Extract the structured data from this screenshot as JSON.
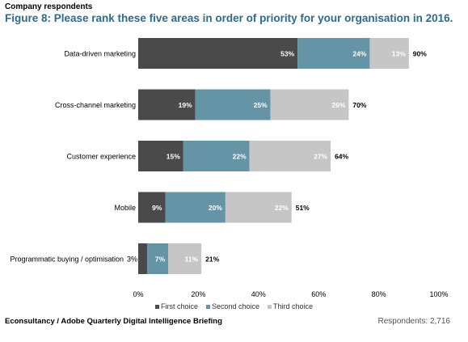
{
  "header": {
    "subtitle": "Company respondents",
    "title": "Figure 8: Please rank these five areas in order of priority for your organisation in 2016."
  },
  "chart_data": {
    "type": "bar",
    "orientation": "horizontal",
    "stacked": true,
    "categories": [
      "Data-driven marketing",
      "Cross-channel marketing",
      "Customer experience",
      "Mobile",
      "Programmatic buying / optimisation"
    ],
    "series": [
      {
        "name": "First choice",
        "values": [
          53,
          19,
          15,
          9,
          3
        ],
        "color": "#4a4a4a"
      },
      {
        "name": "Second choice",
        "values": [
          24,
          25,
          22,
          20,
          7
        ],
        "color": "#6494a6"
      },
      {
        "name": "Third choice",
        "values": [
          13,
          26,
          27,
          22,
          11
        ],
        "color": "#c6c6c6"
      }
    ],
    "totals": [
      90,
      70,
      64,
      51,
      21
    ],
    "value_suffix": "%",
    "xlim": [
      0,
      100
    ],
    "xticks": [
      "0%",
      "20%",
      "40%",
      "60%",
      "80%",
      "100%"
    ],
    "legend_position": "bottom",
    "grid": false
  },
  "footer": {
    "source": "Econsultancy / Adobe Quarterly Digital Intelligence Briefing",
    "respondents": "Respondents: 2,716"
  }
}
